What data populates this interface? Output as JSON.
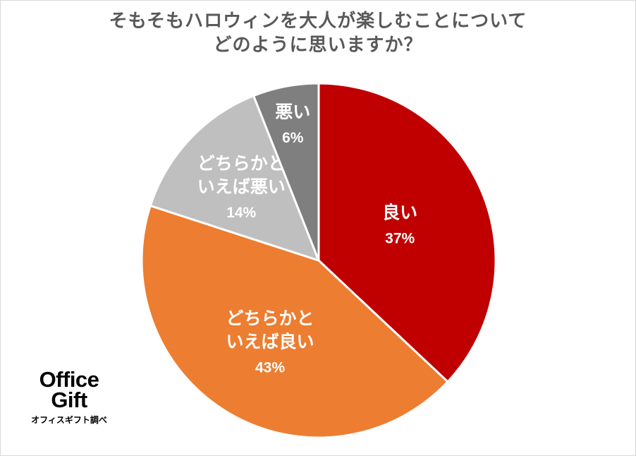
{
  "chart_data": {
    "type": "pie",
    "title_lines": [
      "そもそもハロウィンを大人が楽しむことについて",
      "どのように思いますか？"
    ],
    "slices": [
      {
        "label_lines": [
          "良い"
        ],
        "value": 37,
        "value_label": "37%",
        "color": "#C00000"
      },
      {
        "label_lines": [
          "どちらかと",
          "いえば良い"
        ],
        "value": 43,
        "value_label": "43%",
        "color": "#ED7D31"
      },
      {
        "label_lines": [
          "どちらかと",
          "いえば悪い"
        ],
        "value": 14,
        "value_label": "14%",
        "color": "#BFBFBF"
      },
      {
        "label_lines": [
          "悪い"
        ],
        "value": 6,
        "value_label": "6%",
        "color": "#7F7F7F"
      }
    ],
    "start_angle": "12 o'clock",
    "direction": "clockwise",
    "legend": "none"
  },
  "logo": {
    "line1": "Office",
    "line2": "Gift",
    "source": "オフィスギフト調べ"
  }
}
